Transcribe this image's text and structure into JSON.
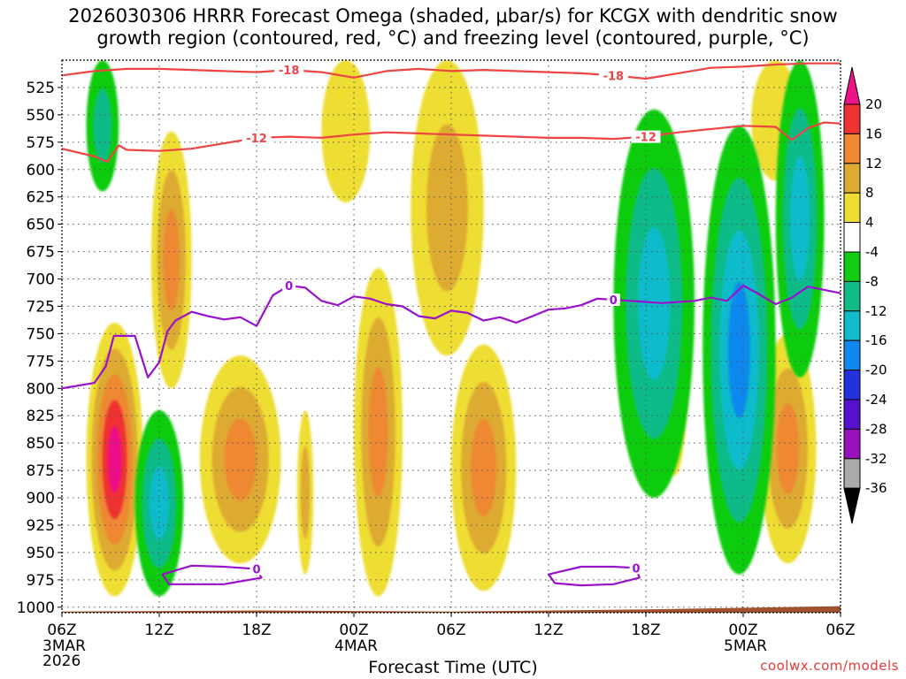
{
  "title": "2026030306 HRRR Forecast Omega (shaded, μbar/s) for KCGX with dendritic snow\ngrowth region (contoured, red, °C) and freezing level (contoured, purple, °C)",
  "credit": "coolwx.com/models",
  "colors": {
    "red_contour": "#ee4444",
    "purple_contour": "#9911cc",
    "ground": "#a0522d"
  },
  "chart_data": {
    "type": "heatmap",
    "title": "2026030306 HRRR Forecast Omega (shaded, μbar/s) for KCGX with dendritic snow growth region (contoured, red, °C) and freezing level (contoured, purple, °C)",
    "xlabel": "Forecast Time (UTC)",
    "ylabel": "",
    "x_range_hours": [
      0,
      48
    ],
    "y_range_mb": [
      500,
      1005
    ],
    "x_ticks": [
      {
        "hour": 0,
        "label": "06Z",
        "sub": [
          "3MAR",
          "2026"
        ]
      },
      {
        "hour": 6,
        "label": "12Z",
        "sub": []
      },
      {
        "hour": 12,
        "label": "18Z",
        "sub": []
      },
      {
        "hour": 18,
        "label": "00Z",
        "sub": [
          "4MAR"
        ]
      },
      {
        "hour": 24,
        "label": "06Z",
        "sub": []
      },
      {
        "hour": 30,
        "label": "12Z",
        "sub": []
      },
      {
        "hour": 36,
        "label": "18Z",
        "sub": []
      },
      {
        "hour": 42,
        "label": "00Z",
        "sub": [
          "5MAR"
        ]
      },
      {
        "hour": 48,
        "label": "06Z",
        "sub": []
      }
    ],
    "y_ticks": [
      525,
      550,
      575,
      600,
      625,
      650,
      675,
      700,
      725,
      750,
      775,
      800,
      825,
      850,
      875,
      900,
      925,
      950,
      975,
      1000
    ],
    "colorbar": {
      "labels": [
        "20",
        "16",
        "12",
        "8",
        "4",
        "-4",
        "-8",
        "-12",
        "-16",
        "-20",
        "-24",
        "-28",
        "-32",
        "-36"
      ],
      "bands": [
        {
          "min": 20,
          "color": "#ee1188"
        },
        {
          "min": 16,
          "max": 20,
          "color": "#ee3333"
        },
        {
          "min": 12,
          "max": 16,
          "color": "#ee8833"
        },
        {
          "min": 8,
          "max": 12,
          "color": "#ddaa33"
        },
        {
          "min": 4,
          "max": 8,
          "color": "#eedd33"
        },
        {
          "min": -4,
          "max": 4,
          "color": "#ffffff"
        },
        {
          "min": -8,
          "max": -4,
          "color": "#11cc11"
        },
        {
          "min": -12,
          "max": -8,
          "color": "#11bb88"
        },
        {
          "min": -16,
          "max": -12,
          "color": "#11bbcc"
        },
        {
          "min": -20,
          "max": -16,
          "color": "#1188ee"
        },
        {
          "min": -24,
          "max": -20,
          "color": "#2233dd"
        },
        {
          "min": -28,
          "max": -24,
          "color": "#5511cc"
        },
        {
          "min": -32,
          "max": -28,
          "color": "#9911bb"
        },
        {
          "min": -36,
          "max": -32,
          "color": "#aaaaaa"
        },
        {
          "max": -36,
          "color": "#000000"
        }
      ]
    },
    "omega_regions": [
      {
        "name": "ascent-early-low-levels",
        "hours": [
          1.5,
          5
        ],
        "mb": [
          740,
          990
        ],
        "peak": 24,
        "levels": [
          4,
          8,
          12,
          16,
          20
        ]
      },
      {
        "name": "ascent-12z-column",
        "hours": [
          5.5,
          8
        ],
        "mb": [
          565,
          800
        ],
        "peak": 14,
        "levels": [
          4,
          8,
          12
        ]
      },
      {
        "name": "ascent-16z-low",
        "hours": [
          8.5,
          13.5
        ],
        "mb": [
          770,
          960
        ],
        "peak": 13,
        "levels": [
          4,
          8,
          12
        ]
      },
      {
        "name": "ascent-20z",
        "hours": [
          14.5,
          15.5
        ],
        "mb": [
          820,
          970
        ],
        "peak": 10,
        "levels": [
          4,
          8
        ]
      },
      {
        "name": "ascent-22z-upper",
        "hours": [
          16,
          19
        ],
        "mb": [
          500,
          630
        ],
        "peak": 6,
        "levels": [
          4
        ]
      },
      {
        "name": "ascent-00z-low",
        "hours": [
          18,
          21
        ],
        "mb": [
          690,
          990
        ],
        "peak": 13,
        "levels": [
          4,
          8,
          12
        ]
      },
      {
        "name": "ascent-04z-column",
        "hours": [
          21.5,
          26
        ],
        "mb": [
          500,
          770
        ],
        "peak": 10,
        "levels": [
          4,
          8
        ]
      },
      {
        "name": "ascent-08z-low",
        "hours": [
          24,
          28
        ],
        "mb": [
          760,
          985
        ],
        "peak": 13,
        "levels": [
          4,
          8,
          12
        ]
      },
      {
        "name": "ascent-21z",
        "hours": [
          37,
          38.5
        ],
        "mb": [
          730,
          880
        ],
        "peak": 6,
        "levels": [
          4
        ]
      },
      {
        "name": "ascent-04z-5mar",
        "hours": [
          43,
          46.5
        ],
        "mb": [
          750,
          960
        ],
        "peak": 13,
        "levels": [
          4,
          8,
          12
        ]
      },
      {
        "name": "ascent-04z-upper",
        "hours": [
          42.5,
          45.5
        ],
        "mb": [
          500,
          610
        ],
        "peak": 7,
        "levels": [
          4
        ]
      },
      {
        "name": "descent-early-upper",
        "hours": [
          1.5,
          3.5
        ],
        "mb": [
          500,
          620
        ],
        "peak": -10,
        "levels": [
          -4,
          -8
        ]
      },
      {
        "name": "descent-14z-low",
        "hours": [
          4.5,
          7.5
        ],
        "mb": [
          820,
          990
        ],
        "peak": -15,
        "levels": [
          -4,
          -8,
          -12
        ]
      },
      {
        "name": "descent-18z-5mar",
        "hours": [
          34,
          39
        ],
        "mb": [
          545,
          900
        ],
        "peak": -14,
        "levels": [
          -4,
          -8,
          -12
        ]
      },
      {
        "name": "descent-01z-5mar",
        "hours": [
          39.5,
          44
        ],
        "mb": [
          560,
          970
        ],
        "peak": -17,
        "levels": [
          -4,
          -8,
          -12,
          -16
        ]
      },
      {
        "name": "descent-04z-upper",
        "hours": [
          44,
          47
        ],
        "mb": [
          500,
          790
        ],
        "peak": -15,
        "levels": [
          -4,
          -8,
          -12
        ]
      }
    ],
    "contours": [
      {
        "name": "dgz-top",
        "value": -18,
        "label": "-18",
        "color": "#ee4444",
        "hours": [
          0,
          2,
          4,
          6,
          8,
          10,
          12,
          14,
          16,
          18,
          20,
          22,
          24,
          26,
          28,
          30,
          32,
          34,
          36,
          38,
          40,
          42,
          44,
          46,
          48
        ],
        "mb": [
          514,
          510,
          508,
          508,
          509,
          510,
          511,
          509,
          511,
          516,
          510,
          508,
          510,
          509,
          510,
          511,
          512,
          514,
          517,
          512,
          507,
          506,
          504,
          503,
          503
        ]
      },
      {
        "name": "dgz-bottom",
        "value": -12,
        "label": "-12",
        "color": "#ee4444",
        "hours": [
          0,
          2,
          2.8,
          3.5,
          4,
          6,
          8,
          10,
          12,
          14,
          16,
          18,
          20,
          22,
          24,
          26,
          28,
          30,
          32,
          34,
          36,
          38,
          40,
          42,
          44,
          45,
          46,
          47,
          48
        ],
        "mb": [
          581,
          588,
          593,
          578,
          582,
          583,
          581,
          576,
          571,
          570,
          571,
          568,
          566,
          567,
          568,
          569,
          570,
          571,
          571,
          572,
          570,
          566,
          563,
          560,
          561,
          573,
          562,
          557,
          558
        ]
      },
      {
        "name": "freezing-level",
        "value": 0,
        "label": "0",
        "color": "#9911cc",
        "hours": [
          0,
          2,
          2.7,
          3.2,
          4.5,
          5.3,
          6,
          6.5,
          7,
          8,
          9,
          10,
          11,
          12,
          13,
          14,
          15,
          16,
          17,
          18,
          19,
          20,
          21,
          22,
          23,
          24,
          25,
          26,
          27,
          28,
          29,
          30,
          31,
          32,
          33,
          34,
          35,
          36,
          37,
          38,
          39,
          40,
          41,
          42,
          43,
          44,
          45,
          46,
          47,
          48
        ],
        "mb": [
          800,
          795,
          780,
          752,
          752,
          790,
          776,
          748,
          738,
          730,
          734,
          737,
          735,
          743,
          715,
          706,
          708,
          720,
          724,
          716,
          718,
          723,
          725,
          734,
          736,
          729,
          731,
          738,
          735,
          740,
          734,
          728,
          727,
          724,
          718,
          719,
          720,
          721,
          722,
          721,
          720,
          717,
          720,
          706,
          714,
          723,
          717,
          707,
          710,
          713
        ]
      },
      {
        "name": "freezing-loop-15z",
        "value": 0,
        "label": "0",
        "color": "#9911cc",
        "closed": true,
        "hours": [
          6.2,
          8,
          10,
          12,
          12.3,
          10,
          8,
          6.6,
          6.2
        ],
        "mb": [
          970,
          962,
          963,
          965,
          973,
          979,
          979,
          979,
          970
        ]
      },
      {
        "name": "freezing-loop-15z-4mar",
        "value": 0,
        "label": "0",
        "color": "#9911cc",
        "closed": true,
        "hours": [
          30,
          32,
          34,
          35.4,
          35.6,
          34,
          32,
          30.4,
          30
        ],
        "mb": [
          970,
          963,
          963,
          964,
          973,
          979,
          980,
          978,
          970
        ]
      }
    ],
    "ground": {
      "hours": [
        0,
        12,
        24,
        36,
        48
      ],
      "mb": [
        1004,
        1003,
        1004,
        1002,
        999
      ]
    }
  }
}
